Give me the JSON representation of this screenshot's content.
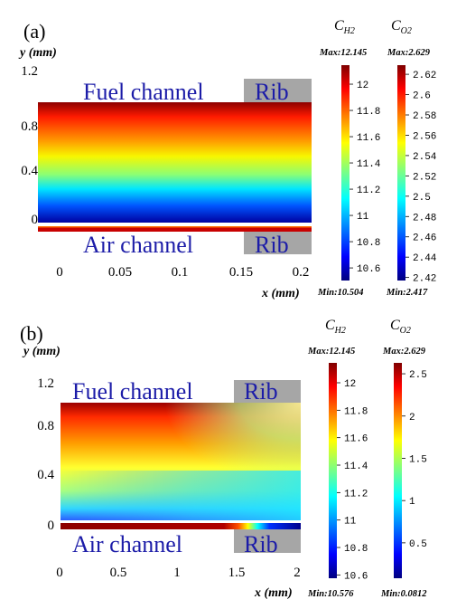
{
  "chart_data": [
    {
      "panel": "(a)",
      "type": "heatmap",
      "ylabel": "y (mm)",
      "xlabel": "x (mm)",
      "xticks": [
        "0",
        "0.05",
        "0.1",
        "0.15",
        "0.2"
      ],
      "yticks": [
        "1.2",
        "0.8",
        "0.4",
        "0"
      ],
      "xlim": [
        0,
        0.2
      ],
      "ylim": [
        0,
        1.2
      ],
      "labels": {
        "fuel": "Fuel channel",
        "air": "Air channel",
        "rib": "Rib"
      },
      "colorbars": [
        {
          "title_main": "C",
          "title_sub": "H2",
          "max_label": "Max:12.145",
          "min_label": "Min:10.504",
          "max": 12.145,
          "min": 10.504,
          "ticks": [
            "12",
            "11.8",
            "11.6",
            "11.4",
            "11.2",
            "11",
            "10.8",
            "10.6"
          ],
          "tick_values": [
            12,
            11.8,
            11.6,
            11.4,
            11.2,
            11,
            10.8,
            10.6
          ]
        },
        {
          "title_main": "C",
          "title_sub": "O2",
          "max_label": "Max:2.629",
          "min_label": "Min:2.417",
          "max": 2.629,
          "min": 2.417,
          "ticks": [
            "2.62",
            "2.6",
            "2.58",
            "2.56",
            "2.54",
            "2.52",
            "2.5",
            "2.48",
            "2.46",
            "2.44",
            "2.42"
          ],
          "tick_values": [
            2.62,
            2.6,
            2.58,
            2.56,
            2.54,
            2.52,
            2.5,
            2.48,
            2.46,
            2.44,
            2.42
          ]
        }
      ]
    },
    {
      "panel": "(b)",
      "type": "heatmap",
      "ylabel": "y (mm)",
      "xlabel": "x (mm)",
      "xticks": [
        "0",
        "0.5",
        "1",
        "1.5",
        "2"
      ],
      "yticks": [
        "1.2",
        "0.8",
        "0.4",
        "0"
      ],
      "xlim": [
        0,
        2
      ],
      "ylim": [
        0,
        1.2
      ],
      "labels": {
        "fuel": "Fuel channel",
        "air": "Air channel",
        "rib": "Rib"
      },
      "colorbars": [
        {
          "title_main": "C",
          "title_sub": "H2",
          "max_label": "Max:12.145",
          "min_label": "Min:10.576",
          "max": 12.145,
          "min": 10.576,
          "ticks": [
            "12",
            "11.8",
            "11.6",
            "11.4",
            "11.2",
            "11",
            "10.8",
            "10.6"
          ],
          "tick_values": [
            12,
            11.8,
            11.6,
            11.4,
            11.2,
            11,
            10.8,
            10.6
          ]
        },
        {
          "title_main": "C",
          "title_sub": "O2",
          "max_label": "Max:2.629",
          "min_label": "Min:0.0812",
          "max": 2.629,
          "min": 0.0812,
          "ticks": [
            "2.5",
            "2",
            "1.5",
            "1",
            "0.5"
          ],
          "tick_values": [
            2.5,
            2,
            1.5,
            1,
            0.5
          ]
        }
      ]
    }
  ],
  "colors": {
    "rib_gray": "#a6a6a6",
    "label_blue": "#1c1ca8",
    "jet_top": "#7f0000",
    "jet_bottom": "#00007f"
  }
}
